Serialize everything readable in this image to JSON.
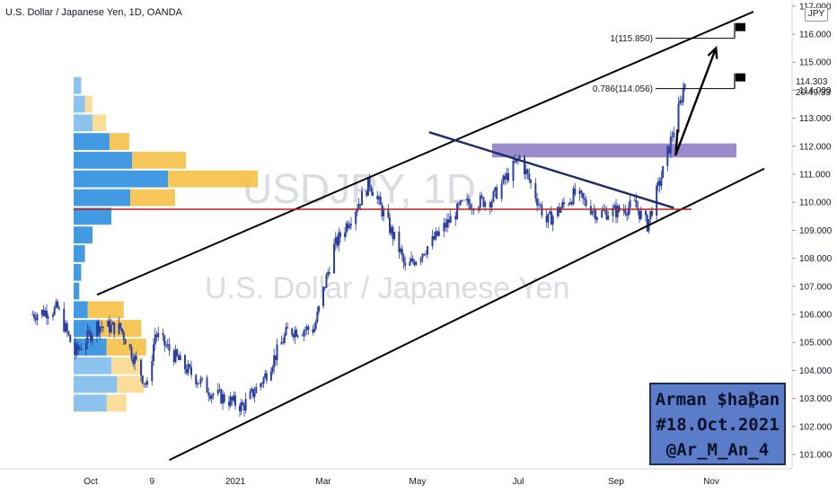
{
  "header": {
    "title": "U.S. Dollar / Japanese Yen, 1D, OANDA"
  },
  "watermark": {
    "symbol": "USDJPY, 1D",
    "name": "U.S. Dollar / Japanese Yen"
  },
  "currency_badge": "JPY",
  "last_price": {
    "value": "114.303",
    "countdown": "20:49:33"
  },
  "fib_levels": [
    {
      "label": "1(115.850)",
      "price": 115.85
    },
    {
      "label": "0.786(114.056)",
      "price": 114.056
    }
  ],
  "signature": [
    "Arman $ha₿an",
    "#18.Oct.2021",
    "@Ar_M_An_4"
  ],
  "colors": {
    "candle": "#2a3f9e",
    "channel": "#000000",
    "trendline": "#1c2a6e",
    "zone": "#8878c3",
    "poc_line": "#b22222",
    "vp_blue": "#2e8fe0",
    "vp_yellow": "#f5c146"
  },
  "chart_data": {
    "type": "candlestick",
    "title": "U.S. Dollar / Japanese Yen, 1D, OANDA",
    "y_ticks": [
      "117.000",
      "116.000",
      "115.000",
      "114.000",
      "113.000",
      "112.000",
      "111.000",
      "110.000",
      "109.000",
      "108.000",
      "107.000",
      "106.000",
      "105.000",
      "104.000",
      "103.000",
      "102.000",
      "101.000"
    ],
    "x_ticks": [
      "Oct",
      "9",
      "2021",
      "Mar",
      "May",
      "Jul",
      "Sep",
      "Nov"
    ],
    "ylim": [
      100.6,
      117.1
    ],
    "close_path": [
      [
        "2020-08-25",
        106.0
      ],
      [
        "2020-09-10",
        106.2
      ],
      [
        "2020-09-21",
        104.6
      ],
      [
        "2020-10-05",
        105.6
      ],
      [
        "2020-10-20",
        105.5
      ],
      [
        "2020-11-06",
        103.4
      ],
      [
        "2020-11-11",
        105.3
      ],
      [
        "2020-11-30",
        104.1
      ],
      [
        "2020-12-17",
        103.2
      ],
      [
        "2021-01-06",
        102.7
      ],
      [
        "2021-01-20",
        103.7
      ],
      [
        "2021-02-05",
        105.4
      ],
      [
        "2021-02-23",
        105.5
      ],
      [
        "2021-03-08",
        108.4
      ],
      [
        "2021-03-31",
        110.7
      ],
      [
        "2021-04-20",
        108.2
      ],
      [
        "2021-04-23",
        107.6
      ],
      [
        "2021-05-10",
        108.6
      ],
      [
        "2021-05-28",
        109.9
      ],
      [
        "2021-06-15",
        110.1
      ],
      [
        "2021-07-02",
        111.6
      ],
      [
        "2021-07-19",
        109.3
      ],
      [
        "2021-08-06",
        110.3
      ],
      [
        "2021-08-20",
        109.6
      ],
      [
        "2021-09-03",
        109.7
      ],
      [
        "2021-09-13",
        109.9
      ],
      [
        "2021-09-21",
        109.2
      ],
      [
        "2021-10-01",
        111.1
      ],
      [
        "2021-10-12",
        113.5
      ],
      [
        "2021-10-15",
        114.3
      ]
    ],
    "channel": {
      "upper": [
        [
          "2020-10-05",
          106.7
        ],
        [
          "2021-11-28",
          116.8
        ]
      ],
      "lower": [
        [
          "2020-11-20",
          100.8
        ],
        [
          "2021-12-05",
          111.2
        ]
      ]
    },
    "descending_trendline": [
      [
        "2021-05-08",
        112.5
      ],
      [
        "2021-10-08",
        109.8
      ]
    ],
    "resistance_zone": [
      111.6,
      112.1
    ],
    "poc_level": 109.75,
    "projection_arrow": [
      [
        "2021-10-15",
        111.7
      ],
      [
        "2021-11-04",
        115.5
      ]
    ],
    "volume_profile_buckets": [
      {
        "blue": 8,
        "yellow": 0
      },
      {
        "blue": 12,
        "yellow": 8
      },
      {
        "blue": 20,
        "yellow": 15
      },
      {
        "blue": 38,
        "yellow": 22
      },
      {
        "blue": 62,
        "yellow": 60
      },
      {
        "blue": 100,
        "yellow": 100
      },
      {
        "blue": 60,
        "yellow": 50
      },
      {
        "blue": 40,
        "yellow": 0
      },
      {
        "blue": 20,
        "yellow": 0
      },
      {
        "blue": 12,
        "yellow": 0
      },
      {
        "blue": 8,
        "yellow": 0
      },
      {
        "blue": 6,
        "yellow": 0
      },
      {
        "blue": 15,
        "yellow": 40
      },
      {
        "blue": 28,
        "yellow": 46
      },
      {
        "blue": 35,
        "yellow": 44
      },
      {
        "blue": 40,
        "yellow": 35
      },
      {
        "blue": 46,
        "yellow": 30
      },
      {
        "blue": 35,
        "yellow": 22
      }
    ]
  }
}
